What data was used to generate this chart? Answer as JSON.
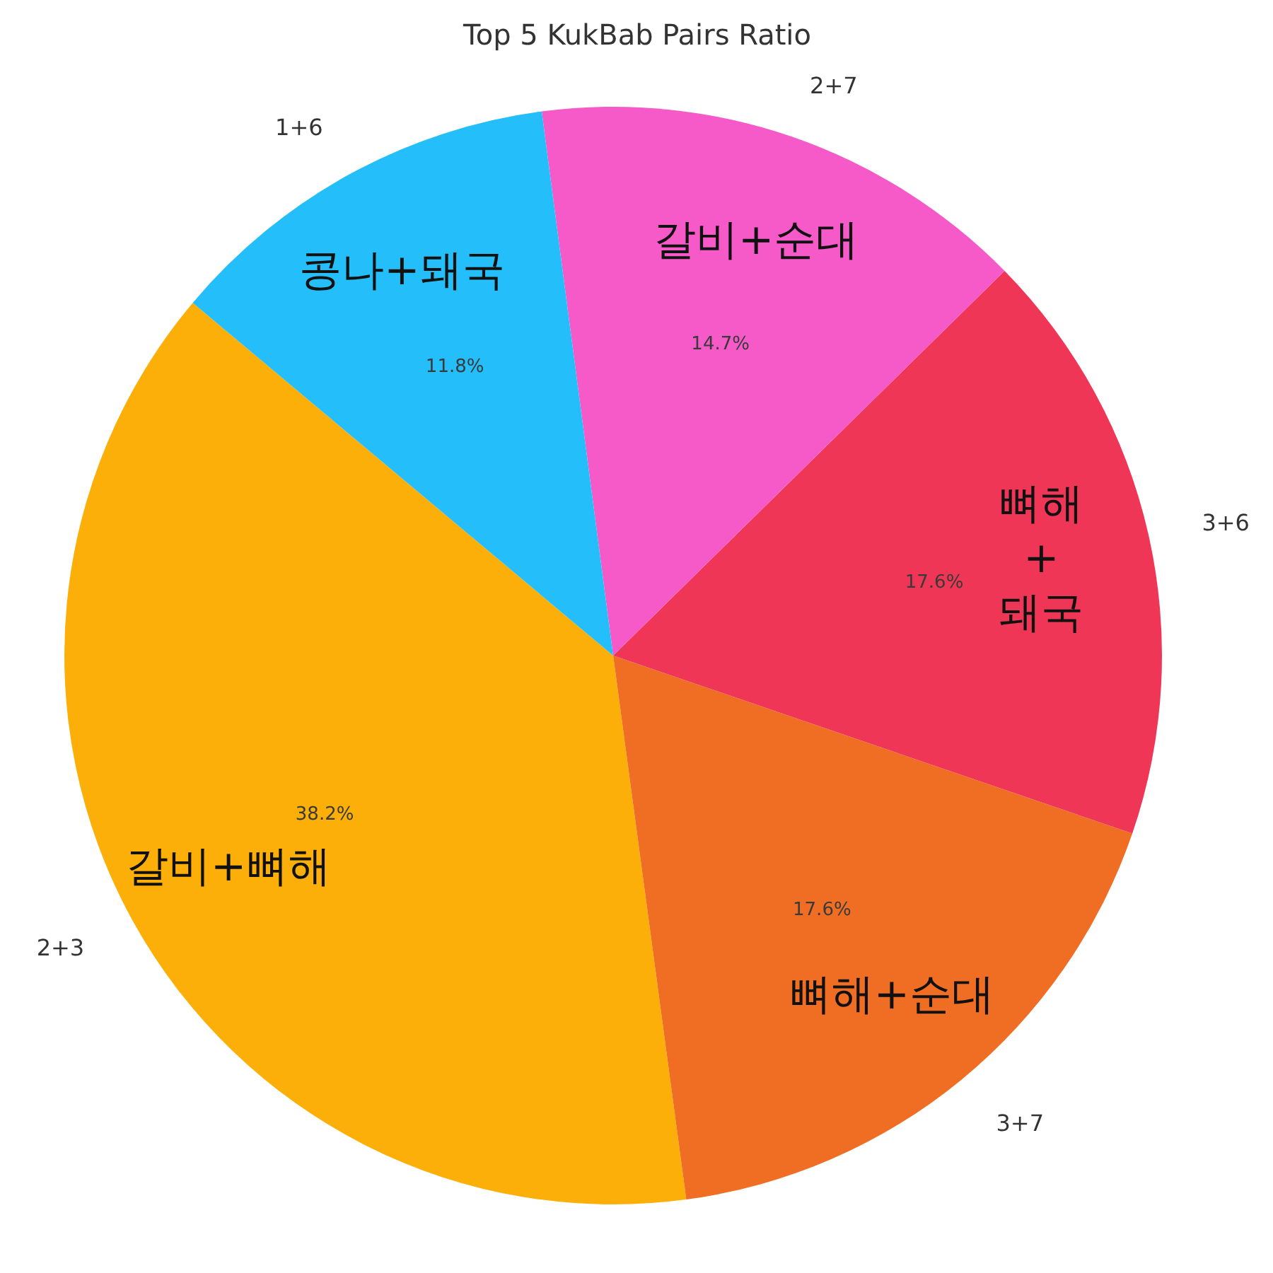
{
  "chart_data": {
    "type": "pie",
    "title": "Top 5 KukBab Pairs Ratio",
    "categories": [
      "2+3",
      "3+7",
      "3+6",
      "2+7",
      "1+6"
    ],
    "values": [
      38.2,
      17.6,
      17.6,
      14.7,
      11.8
    ],
    "value_labels": [
      "38.2%",
      "17.6%",
      "17.6%",
      "14.7%",
      "11.8%"
    ],
    "colors": [
      "#fcaf08",
      "#f06e24",
      "#f03656",
      "#f55ac8",
      "#24befa"
    ],
    "annotations": [
      "갈비+뼈해",
      "뼈해+순대",
      "뼈해\n+\n돼국",
      "갈비+순대",
      "콩나+돼국"
    ]
  }
}
